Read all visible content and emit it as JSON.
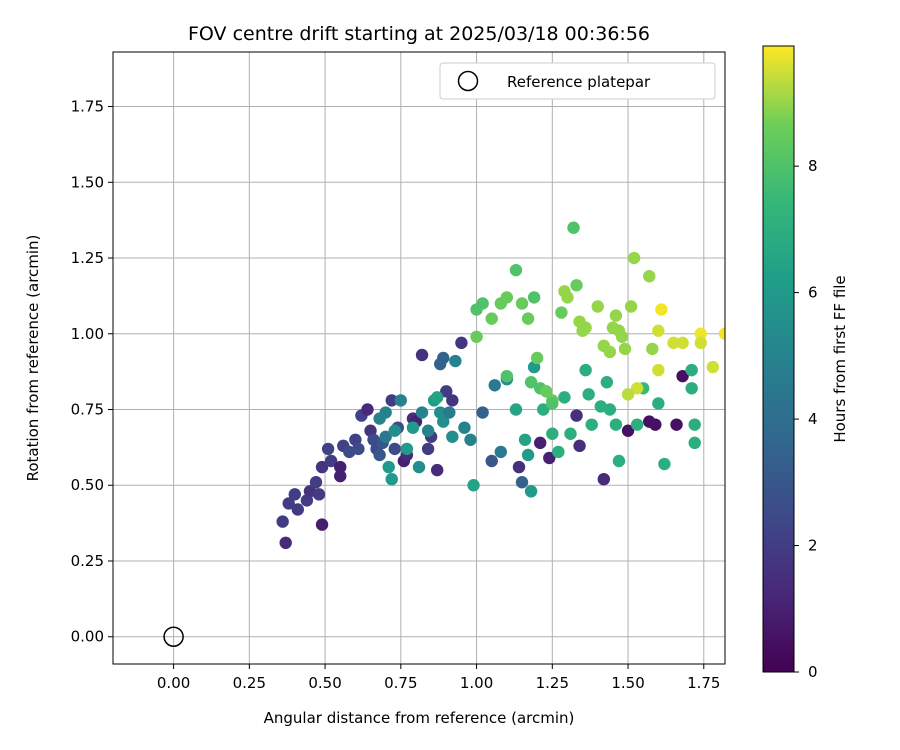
{
  "chart_data": {
    "type": "scatter",
    "title": "FOV centre drift starting at 2025/03/18 00:36:56",
    "xlabel": "Angular distance from reference (arcmin)",
    "ylabel": "Rotation from reference (arcmin)",
    "colorbar_label": "Hours from first FF file",
    "colormap": "viridis",
    "xlim": [
      -0.2,
      1.82
    ],
    "ylim": [
      -0.09,
      1.93
    ],
    "clim": [
      0,
      9.9
    ],
    "grid": true,
    "legend_position": "top-right",
    "x_ticks": [
      "0.00",
      "0.25",
      "0.50",
      "0.75",
      "1.00",
      "1.25",
      "1.50",
      "1.75"
    ],
    "y_ticks": [
      "0.00",
      "0.25",
      "0.50",
      "0.75",
      "1.00",
      "1.25",
      "1.50",
      "1.75"
    ],
    "colorbar_ticks": [
      "0",
      "2",
      "4",
      "6",
      "8"
    ],
    "reference": {
      "label": "Reference platepar",
      "x": 0.0,
      "y": 0.0
    },
    "points": [
      [
        0.37,
        0.31,
        1.3
      ],
      [
        0.36,
        0.38,
        2.0
      ],
      [
        0.38,
        0.44,
        2.0
      ],
      [
        0.4,
        0.47,
        2.0
      ],
      [
        0.41,
        0.42,
        2.0
      ],
      [
        0.44,
        0.45,
        2.0
      ],
      [
        0.45,
        0.48,
        1.7
      ],
      [
        0.47,
        0.51,
        2.0
      ],
      [
        0.48,
        0.47,
        2.0
      ],
      [
        0.49,
        0.56,
        1.7
      ],
      [
        0.51,
        0.62,
        2.2
      ],
      [
        0.49,
        0.37,
        0.9
      ],
      [
        0.52,
        0.58,
        2.0
      ],
      [
        0.55,
        0.53,
        1.0
      ],
      [
        0.55,
        0.56,
        1.0
      ],
      [
        0.56,
        0.63,
        2.2
      ],
      [
        0.58,
        0.61,
        2.5
      ],
      [
        0.6,
        0.65,
        2.2
      ],
      [
        0.61,
        0.62,
        2.5
      ],
      [
        0.62,
        0.73,
        2.2
      ],
      [
        0.64,
        0.75,
        1.3
      ],
      [
        0.65,
        0.68,
        1.7
      ],
      [
        0.66,
        0.65,
        2.5
      ],
      [
        0.67,
        0.62,
        2.5
      ],
      [
        0.68,
        0.6,
        3.0
      ],
      [
        0.69,
        0.64,
        3.0
      ],
      [
        0.7,
        0.66,
        4.5
      ],
      [
        0.72,
        0.78,
        2.0
      ],
      [
        0.73,
        0.62,
        2.5
      ],
      [
        0.74,
        0.69,
        2.5
      ],
      [
        0.76,
        0.58,
        1.0
      ],
      [
        0.77,
        0.6,
        1.3
      ],
      [
        0.79,
        0.72,
        1.5
      ],
      [
        0.8,
        0.71,
        1.0
      ],
      [
        0.82,
        0.93,
        1.5
      ],
      [
        0.84,
        0.62,
        2.0
      ],
      [
        0.85,
        0.66,
        2.0
      ],
      [
        0.87,
        0.55,
        1.3
      ],
      [
        0.88,
        0.9,
        3.5
      ],
      [
        0.89,
        0.92,
        3.5
      ],
      [
        0.9,
        0.81,
        2.0
      ],
      [
        0.92,
        0.78,
        1.7
      ],
      [
        0.95,
        0.97,
        1.7
      ],
      [
        0.68,
        0.72,
        5.0
      ],
      [
        0.7,
        0.74,
        5.0
      ],
      [
        0.71,
        0.56,
        6.0
      ],
      [
        0.72,
        0.52,
        6.0
      ],
      [
        0.73,
        0.68,
        5.5
      ],
      [
        0.75,
        0.78,
        5.0
      ],
      [
        0.77,
        0.62,
        6.0
      ],
      [
        0.79,
        0.69,
        6.0
      ],
      [
        0.81,
        0.56,
        5.5
      ],
      [
        0.82,
        0.74,
        5.0
      ],
      [
        0.84,
        0.68,
        5.0
      ],
      [
        0.86,
        0.78,
        6.0
      ],
      [
        0.87,
        0.79,
        6.5
      ],
      [
        0.88,
        0.74,
        5.5
      ],
      [
        0.89,
        0.71,
        5.5
      ],
      [
        0.91,
        0.74,
        4.5
      ],
      [
        0.92,
        0.66,
        5.5
      ],
      [
        0.93,
        0.91,
        5.0
      ],
      [
        0.96,
        0.69,
        5.0
      ],
      [
        0.98,
        0.65,
        5.0
      ],
      [
        0.99,
        0.5,
        6.5
      ],
      [
        1.02,
        0.74,
        3.5
      ],
      [
        1.05,
        0.58,
        3.0
      ],
      [
        1.06,
        0.83,
        4.5
      ],
      [
        1.08,
        0.61,
        4.5
      ],
      [
        1.1,
        0.85,
        5.5
      ],
      [
        1.13,
        0.75,
        6.5
      ],
      [
        1.14,
        0.56,
        1.5
      ],
      [
        1.15,
        0.51,
        3.5
      ],
      [
        1.16,
        0.65,
        6.5
      ],
      [
        1.17,
        0.6,
        6.0
      ],
      [
        1.18,
        0.48,
        6.0
      ],
      [
        1.19,
        0.89,
        6.0
      ],
      [
        1.21,
        0.64,
        1.0
      ],
      [
        1.22,
        0.75,
        7.0
      ],
      [
        1.24,
        0.59,
        1.0
      ],
      [
        1.25,
        0.67,
        7.0
      ],
      [
        1.27,
        0.61,
        7.0
      ],
      [
        1.29,
        0.79,
        7.0
      ],
      [
        1.31,
        0.67,
        7.0
      ],
      [
        1.33,
        0.73,
        1.5
      ],
      [
        1.34,
        0.63,
        1.5
      ],
      [
        1.36,
        0.88,
        7.0
      ],
      [
        1.37,
        0.8,
        7.0
      ],
      [
        1.38,
        0.7,
        7.0
      ],
      [
        1.41,
        0.76,
        7.0
      ],
      [
        1.42,
        0.52,
        1.3
      ],
      [
        1.43,
        0.84,
        7.0
      ],
      [
        1.44,
        0.75,
        7.0
      ],
      [
        1.46,
        0.7,
        7.0
      ],
      [
        1.47,
        0.58,
        7.0
      ],
      [
        1.5,
        0.68,
        0.5
      ],
      [
        1.53,
        0.7,
        7.0
      ],
      [
        1.55,
        0.82,
        7.5
      ],
      [
        1.57,
        0.71,
        0.5
      ],
      [
        1.59,
        0.7,
        0.5
      ],
      [
        1.6,
        0.77,
        7.0
      ],
      [
        1.62,
        0.57,
        7.0
      ],
      [
        1.66,
        0.7,
        0.5
      ],
      [
        1.68,
        0.86,
        0.5
      ],
      [
        1.71,
        0.88,
        7.0
      ],
      [
        1.72,
        0.7,
        7.0
      ],
      [
        1.71,
        0.82,
        7.0
      ],
      [
        1.72,
        0.64,
        7.0
      ],
      [
        1.0,
        1.08,
        8.0
      ],
      [
        1.02,
        1.1,
        8.0
      ],
      [
        1.05,
        1.05,
        8.5
      ],
      [
        1.08,
        1.1,
        8.5
      ],
      [
        1.1,
        1.12,
        8.5
      ],
      [
        1.13,
        1.21,
        8.0
      ],
      [
        1.15,
        1.1,
        8.5
      ],
      [
        1.17,
        1.05,
        8.5
      ],
      [
        1.19,
        1.12,
        8.0
      ],
      [
        1.2,
        0.92,
        8.5
      ],
      [
        1.21,
        0.82,
        8.0
      ],
      [
        1.23,
        0.81,
        8.5
      ],
      [
        1.25,
        0.78,
        8.5
      ],
      [
        1.28,
        1.07,
        8.5
      ],
      [
        1.29,
        1.14,
        9.0
      ],
      [
        1.3,
        1.12,
        9.0
      ],
      [
        1.32,
        1.35,
        8.0
      ],
      [
        1.33,
        1.16,
        8.5
      ],
      [
        1.34,
        1.04,
        9.0
      ],
      [
        1.35,
        1.01,
        9.0
      ],
      [
        1.36,
        1.02,
        9.0
      ],
      [
        1.4,
        1.09,
        9.0
      ],
      [
        1.42,
        0.96,
        9.0
      ],
      [
        1.44,
        0.94,
        9.0
      ],
      [
        1.45,
        1.02,
        9.0
      ],
      [
        1.46,
        1.06,
        9.0
      ],
      [
        1.47,
        1.01,
        9.0
      ],
      [
        1.48,
        0.99,
        9.0
      ],
      [
        1.49,
        0.95,
        9.0
      ],
      [
        1.51,
        1.09,
        9.0
      ],
      [
        1.52,
        1.25,
        9.0
      ],
      [
        1.53,
        0.82,
        9.5
      ],
      [
        1.57,
        1.19,
        9.0
      ],
      [
        1.58,
        0.95,
        9.0
      ],
      [
        1.6,
        1.01,
        9.5
      ],
      [
        1.6,
        0.88,
        9.5
      ],
      [
        1.61,
        1.08,
        9.8
      ],
      [
        1.65,
        0.97,
        9.5
      ],
      [
        1.68,
        0.97,
        9.5
      ],
      [
        1.74,
        1.0,
        9.8
      ],
      [
        1.74,
        0.97,
        9.5
      ],
      [
        1.78,
        0.89,
        9.5
      ],
      [
        1.82,
        1.0,
        9.8
      ],
      [
        1.5,
        0.8,
        9.3
      ],
      [
        1.25,
        0.77,
        8.0
      ],
      [
        1.1,
        0.86,
        8.0
      ],
      [
        1.0,
        0.99,
        8.5
      ],
      [
        1.18,
        0.84,
        8.0
      ]
    ]
  }
}
